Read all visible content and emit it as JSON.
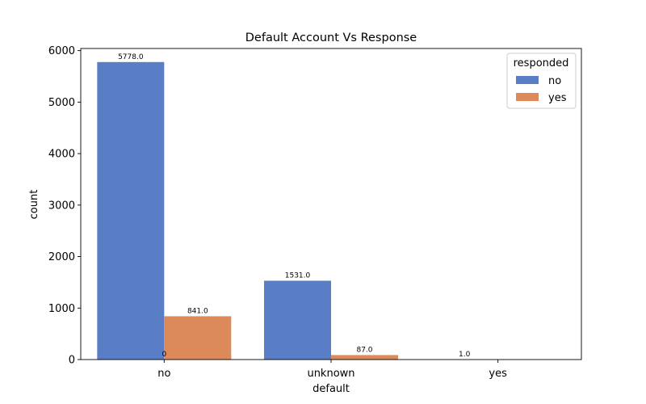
{
  "chart_data": {
    "type": "bar",
    "title": "Default Account Vs Response",
    "xlabel": "default",
    "ylabel": "count",
    "categories": [
      "no",
      "unknown",
      "yes"
    ],
    "series": [
      {
        "name": "no",
        "color": "#5A7EC6",
        "values": [
          5778.0,
          1531.0,
          1.0
        ],
        "labels": [
          "5778.0",
          "1531.0",
          "1.0"
        ]
      },
      {
        "name": "yes",
        "color": "#DD8A5A",
        "values": [
          841.0,
          87.0,
          0
        ],
        "labels": [
          "841.0",
          "87.0",
          null
        ]
      }
    ],
    "extra_labels": [
      {
        "category": "no",
        "text": "0"
      }
    ],
    "ylim": [
      0,
      6000
    ],
    "yticks": [
      0,
      1000,
      2000,
      3000,
      4000,
      5000,
      6000
    ],
    "legend": {
      "title": "responded",
      "position": "top-right"
    },
    "grid": false
  }
}
